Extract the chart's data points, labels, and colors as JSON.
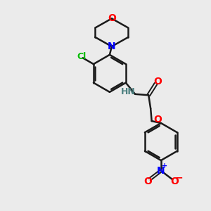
{
  "bg_color": "#ebebeb",
  "bond_color": "#1a1a1a",
  "N_color": "#0000ff",
  "O_color": "#ff0000",
  "Cl_color": "#00bb00",
  "H_color": "#4d8080",
  "figsize": [
    3.0,
    3.0
  ],
  "dpi": 100,
  "xlim": [
    0,
    10
  ],
  "ylim": [
    0,
    10
  ]
}
